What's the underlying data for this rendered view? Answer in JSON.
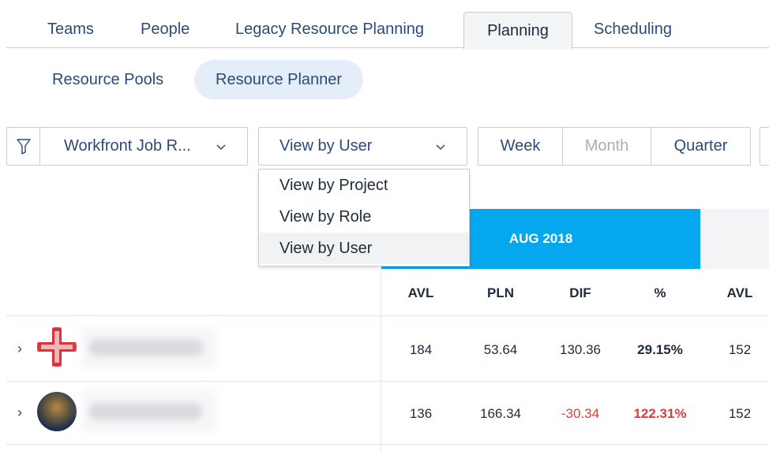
{
  "tabs": [
    {
      "label": "Teams"
    },
    {
      "label": "People"
    },
    {
      "label": "Legacy Resource Planning"
    },
    {
      "label": "Planning",
      "active": true
    },
    {
      "label": "Scheduling"
    }
  ],
  "subtabs": [
    {
      "label": "Resource Pools"
    },
    {
      "label": "Resource Planner",
      "active": true
    }
  ],
  "toolbar": {
    "filter_icon": "filter-icon",
    "job_role_select": "Workfront Job R...",
    "view_select": "View by User",
    "periods": [
      "Week",
      "Month",
      "Quarter"
    ]
  },
  "view_menu": {
    "options": [
      "View by Project",
      "View by Role",
      "View by User"
    ],
    "selected": "View by User"
  },
  "grid": {
    "month": "AUG 2018",
    "columns": [
      "AVL",
      "PLN",
      "DIF",
      "%",
      "AVL"
    ],
    "rows": [
      {
        "avl": "184",
        "pln": "53.64",
        "dif": "130.36",
        "pct": "29.15%",
        "next_avl": "152"
      },
      {
        "avl": "136",
        "pln": "166.34",
        "dif": "-30.34",
        "pct": "122.31%",
        "next_avl": "152"
      }
    ]
  },
  "colors": {
    "accent": "#05a8ef",
    "negative": "#e33b3b",
    "link": "#2c4a78"
  }
}
